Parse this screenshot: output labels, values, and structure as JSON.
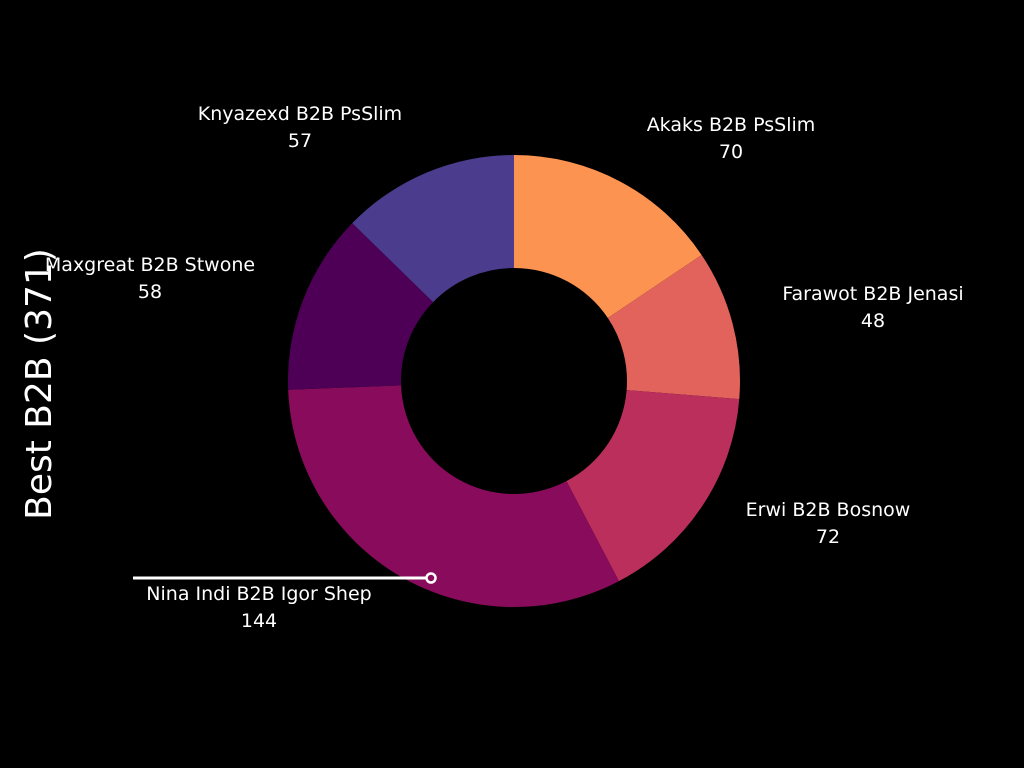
{
  "chart_data": {
    "type": "pie",
    "title": "Best B2B (371)",
    "categories": [
      "Akaks B2B PsSlim",
      "Farawot B2B Jenasi",
      "Erwi B2B Bosnow",
      "Nina Indi B2B Igor Shep",
      "Maxgreat B2B Stwone",
      "Knyazexd B2B PsSlim"
    ],
    "values": [
      70,
      48,
      72,
      144,
      58,
      57
    ],
    "value_labels": [
      "70",
      "48",
      "72",
      "144",
      "58",
      "57"
    ],
    "colors": [
      "#fc9350",
      "#e2625c",
      "#bb2f5c",
      "#890b5c",
      "#4d0055",
      "#4b3c8e"
    ],
    "hole": 0.5,
    "start_angle_deg": 0,
    "direction": "clockwise",
    "highlight_index": 3,
    "highlight_color": "#ffffff",
    "background": "#000000"
  }
}
